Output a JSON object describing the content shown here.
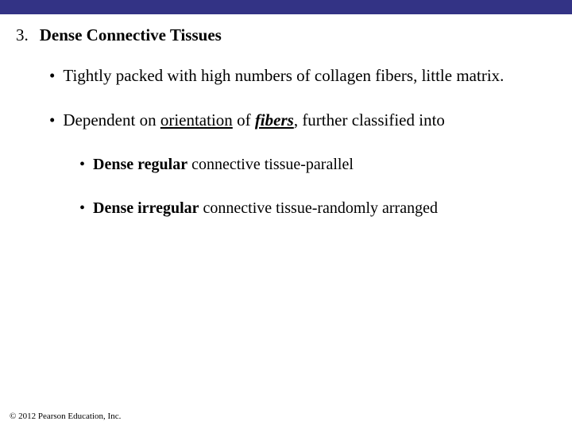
{
  "colors": {
    "top_bar": "#333385",
    "background": "#ffffff",
    "text": "#000000"
  },
  "typography": {
    "body_family": "Times New Roman",
    "heading_size_pt": 21,
    "bullet1_size_pt": 21,
    "bullet2_size_pt": 20,
    "footer_size_pt": 11
  },
  "heading": {
    "number": "3.",
    "text": "Dense Connective Tissues"
  },
  "bullets": {
    "b1": {
      "dot": "•",
      "text": "Tightly packed with high numbers of collagen fibers, little matrix."
    },
    "b2": {
      "dot": "•",
      "pre": "Dependent on ",
      "underlined": "orientation",
      "mid": " of ",
      "fibers": "fibers",
      "post": ", further classified into"
    },
    "b3": {
      "dot": "•",
      "bold": "Dense regular",
      "rest": " connective tissue-parallel"
    },
    "b4": {
      "dot": "•",
      "bold": "Dense irregular",
      "rest": " connective tissue-randomly arranged"
    }
  },
  "footer": "© 2012 Pearson Education, Inc."
}
